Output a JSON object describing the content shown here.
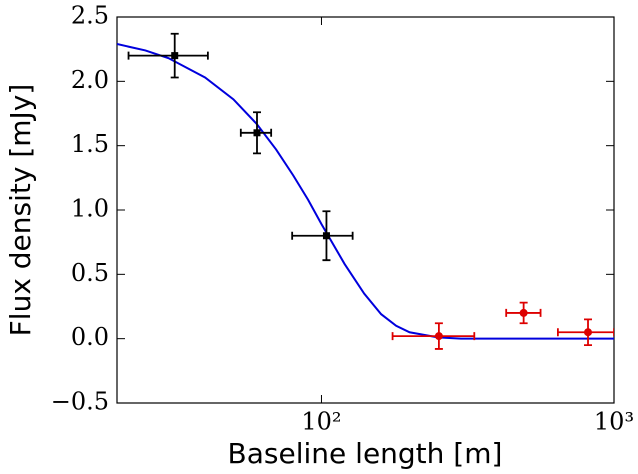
{
  "chart_data": {
    "type": "scatter",
    "x_label": "Baseline length [m]",
    "y_label": "Flux density [mJy]",
    "xscale": "log",
    "xlim": [
      20,
      1000
    ],
    "xticks": [
      {
        "value": 100,
        "label": "10²"
      },
      {
        "value": 1000,
        "label": "10³"
      }
    ],
    "ylim": [
      -0.5,
      2.5
    ],
    "yticks": [
      {
        "value": -0.5,
        "label": "−0.5"
      },
      {
        "value": 0,
        "label": "0.0"
      },
      {
        "value": 0.5,
        "label": "0.5"
      },
      {
        "value": 1,
        "label": "1.0"
      },
      {
        "value": 1.5,
        "label": "1.5"
      },
      {
        "value": 2,
        "label": "2.0"
      },
      {
        "value": 2.5,
        "label": "2.5"
      }
    ],
    "series": [
      {
        "color": "#000000",
        "marker": "square",
        "x": [
          31.5,
          60.2,
          104
        ],
        "values": [
          2.2,
          1.6,
          0.8
        ],
        "xerr": [
          [
            9.6,
            9.4
          ],
          [
            7.2,
            7.1
          ],
          [
            24.6,
            23.8
          ]
        ],
        "yerr": [
          0.17,
          0.16,
          0.19
        ]
      },
      {
        "color": "#dd0000",
        "marker": "circle",
        "x": [
          252,
          491,
          815
        ],
        "values": [
          0.02,
          0.2,
          0.05
        ],
        "xerr": [
          [
            77,
            81
          ],
          [
            63,
            70
          ],
          [
            172,
            185
          ]
        ],
        "yerr": [
          0.1,
          0.08,
          0.1
        ]
      }
    ],
    "curve": {
      "color": "#0000dd",
      "x": [
        20,
        25,
        30,
        40,
        50,
        60,
        70,
        80,
        90,
        100,
        120,
        140,
        160,
        180,
        200,
        250,
        300,
        400,
        600,
        1000
      ],
      "values": [
        2.29,
        2.24,
        2.18,
        2.03,
        1.86,
        1.67,
        1.47,
        1.27,
        1.08,
        0.89,
        0.58,
        0.35,
        0.19,
        0.1,
        0.05,
        0.01,
        0,
        0,
        0,
        0
      ]
    }
  }
}
